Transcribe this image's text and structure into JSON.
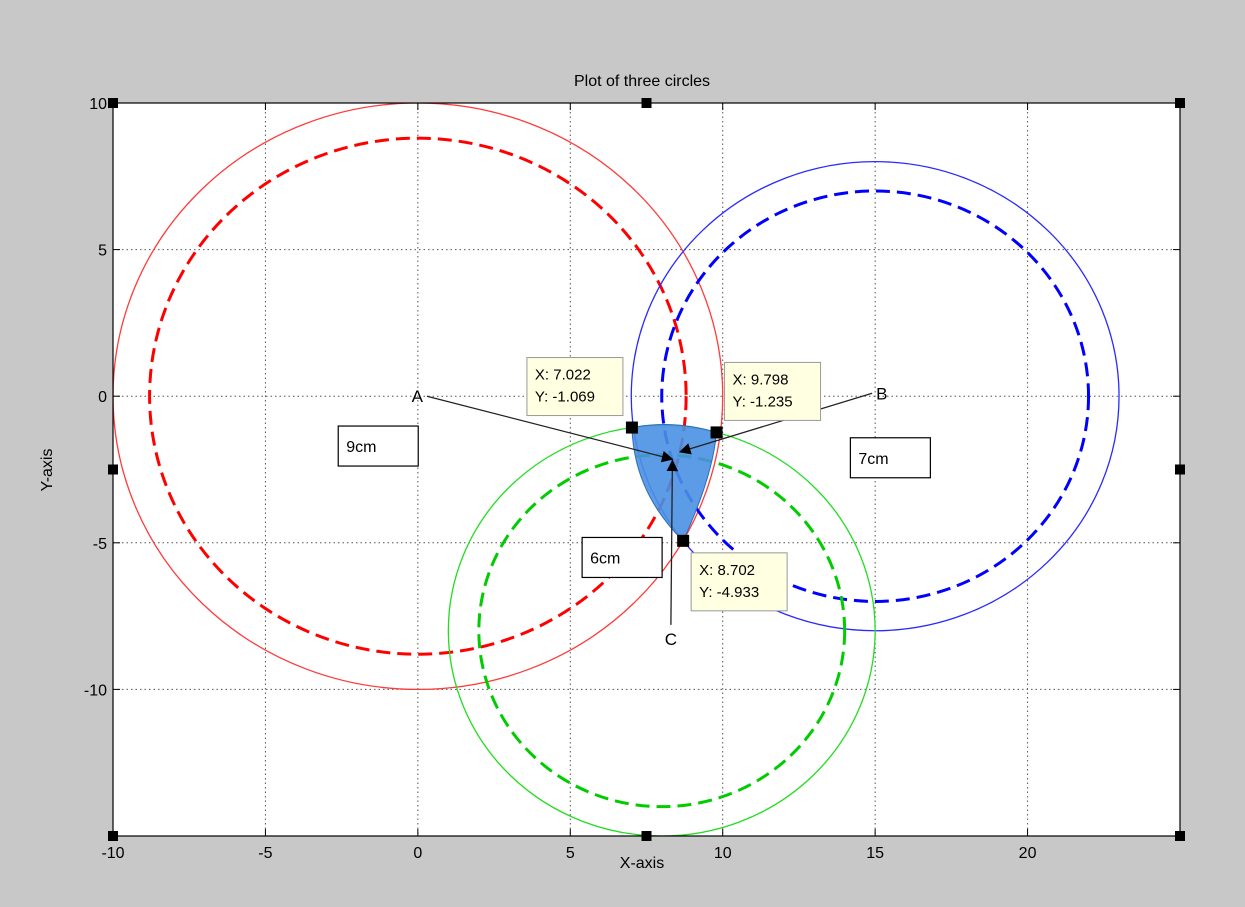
{
  "chart_data": {
    "type": "line",
    "title": "Plot of three circles",
    "xlabel": "X-axis",
    "ylabel": "Y-axis",
    "xlim": [
      -10,
      25
    ],
    "ylim": [
      -15,
      10
    ],
    "grid": true,
    "xticks": [
      -10,
      -5,
      0,
      5,
      10,
      15,
      20
    ],
    "yticks": [
      -10,
      -5,
      0,
      5,
      10
    ],
    "series": [
      {
        "cx": 0,
        "cy": 0,
        "r": 10,
        "style": "solid",
        "color": "#ff3b3b"
      },
      {
        "cx": 0,
        "cy": 0,
        "r": 8.8,
        "style": "dashed",
        "color": "#ff0000"
      },
      {
        "cx": 15,
        "cy": 0,
        "r": 8,
        "style": "solid",
        "color": "#2a2aff"
      },
      {
        "cx": 15,
        "cy": 0,
        "r": 7,
        "style": "dashed",
        "color": "#0000ff"
      },
      {
        "cx": 8,
        "cy": -8,
        "r": 7,
        "style": "solid",
        "color": "#22dd22"
      },
      {
        "cx": 8,
        "cy": -8,
        "r": 6,
        "style": "dashed",
        "color": "#00cc00"
      }
    ],
    "shaded_region": {
      "color": "#4a90e2",
      "points": [
        [
          7.022,
          -1.069
        ],
        [
          9.798,
          -1.235
        ],
        [
          8.702,
          -4.933
        ]
      ]
    },
    "datatips": [
      {
        "x": 7.022,
        "y": -1.069,
        "line1": "X: 7.022",
        "line2": "Y: -1.069"
      },
      {
        "x": 9.798,
        "y": -1.235,
        "line1": "X: 9.798",
        "line2": "Y: -1.235"
      },
      {
        "x": 8.702,
        "y": -4.933,
        "line1": "X: 8.702",
        "line2": "Y: -4.933"
      }
    ],
    "radius_labels": [
      {
        "text": "9cm",
        "x": -1.3,
        "y": -1.7
      },
      {
        "text": "7cm",
        "x": 15.5,
        "y": -2.1
      },
      {
        "text": "6cm",
        "x": 6.7,
        "y": -5.5
      }
    ],
    "arrow_annotations": [
      {
        "label": "A",
        "from": [
          0.3,
          0.0
        ],
        "to": [
          8.35,
          -2.15
        ]
      },
      {
        "label": "B",
        "from": [
          14.9,
          0.1
        ],
        "to": [
          8.6,
          -1.9
        ]
      },
      {
        "label": "C",
        "from": [
          8.3,
          -7.8
        ],
        "to": [
          8.35,
          -2.2
        ]
      }
    ]
  }
}
